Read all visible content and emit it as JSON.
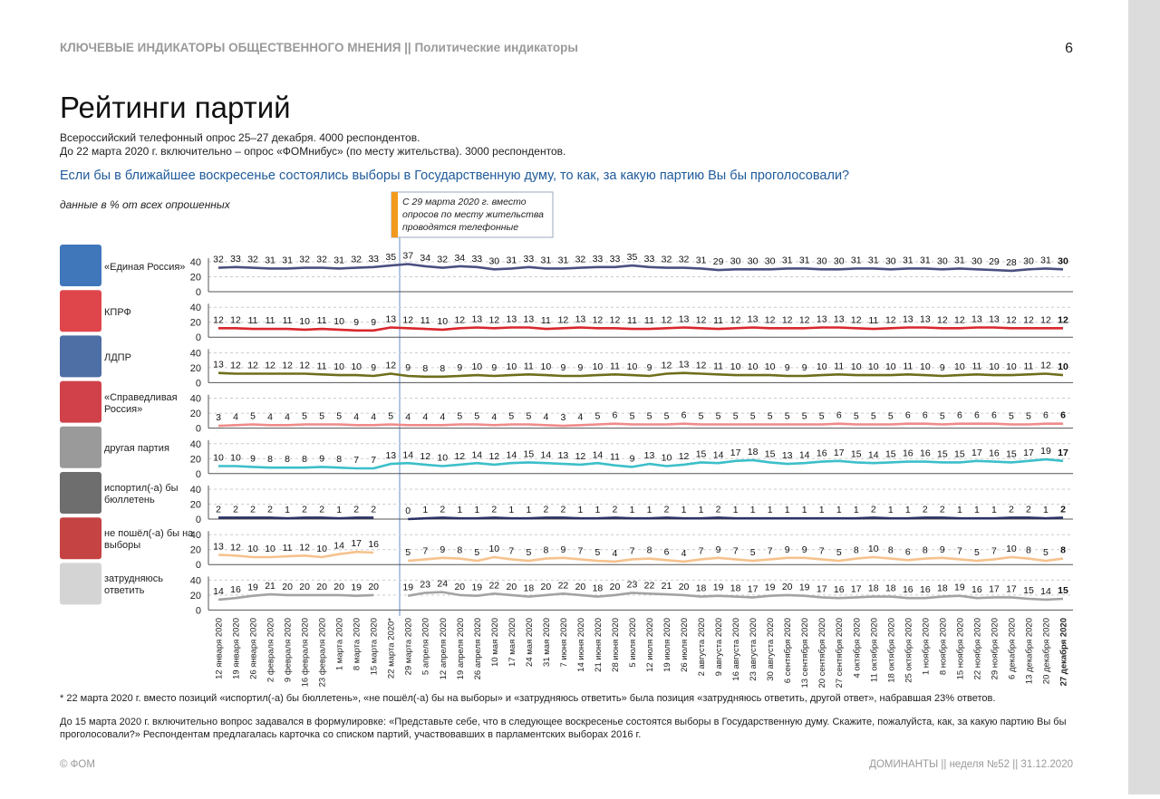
{
  "header": {
    "running_title": "КЛЮЧЕВЫЕ ИНДИКАТОРЫ ОБЩЕСТВЕННОГО МНЕНИЯ || Политические индикаторы",
    "page_number": "6"
  },
  "title": "Рейтинги партий",
  "subtitle": [
    "Всероссийский телефонный опрос 25–27 декабря. 4000 респондентов.",
    "До 22 марта 2020 г. включительно – опрос «ФОМнибус» (по месту жительства). 3000 респондентов."
  ],
  "question": "Если бы в ближайшее воскресенье состоялись выборы в Государственную думу, то как, за какую партию Вы бы проголосовали?",
  "units_note": "данные в % от всех опрошенных",
  "annotation": "С 29 марта 2020 г. вместо опросов по месту жительства проводятся телефонные опросы",
  "chart": {
    "type": "line",
    "x": [
      "12 января 2020",
      "19 января 2020",
      "26 января 2020",
      "2 февраля 2020",
      "9 февраля 2020",
      "16 февраля 2020",
      "23 февраля 2020",
      "1 марта 2020",
      "8 марта 2020",
      "15 марта 2020",
      "22 марта 2020*",
      "29 марта 2020",
      "5 апреля 2020",
      "12 апреля 2020",
      "19 апреля 2020",
      "26 апреля 2020",
      "10 мая 2020",
      "17 мая 2020",
      "24 мая 2020",
      "31 мая 2020",
      "7 июня 2020",
      "14 июня 2020",
      "21 июня 2020",
      "28 июня 2020",
      "5 июля 2020",
      "12 июля 2020",
      "19 июля 2020",
      "26 июля 2020",
      "2 августа 2020",
      "9 августа 2020",
      "16 августа 2020",
      "23 августа 2020",
      "30 августа 2020",
      "6 сентября 2020",
      "13 сентября 2020",
      "20 сентября 2020",
      "27 сентября 2020",
      "4 октября 2020",
      "11 октября 2020",
      "18 октября 2020",
      "25 октября 2020",
      "1 ноября 2020",
      "8 ноября 2020",
      "15 ноября 2020",
      "22 ноября 2020",
      "29 ноября 2020",
      "6 декабря 2020",
      "13 декабря 2020",
      "20 декабря 2020",
      "27 декабря 2020"
    ],
    "ylim": [
      0,
      40
    ],
    "yticks": [
      0,
      20,
      40
    ],
    "series": [
      {
        "name": "«Единая Россия»",
        "color": "#4b5080",
        "values": [
          32,
          33,
          32,
          31,
          31,
          32,
          32,
          31,
          32,
          33,
          35,
          37,
          34,
          32,
          34,
          33,
          30,
          31,
          33,
          31,
          31,
          32,
          33,
          33,
          35,
          33,
          32,
          32,
          31,
          29,
          30,
          30,
          30,
          31,
          31,
          30,
          30,
          31,
          31,
          30,
          31,
          31,
          30,
          31,
          30,
          29,
          28,
          30,
          31,
          30
        ]
      },
      {
        "name": "КПРФ",
        "color": "#d9262c",
        "values": [
          12,
          12,
          11,
          11,
          11,
          10,
          11,
          10,
          9,
          9,
          13,
          12,
          11,
          10,
          12,
          13,
          12,
          13,
          13,
          11,
          12,
          13,
          12,
          12,
          11,
          11,
          12,
          13,
          12,
          11,
          12,
          13,
          12,
          12,
          12,
          13,
          13,
          12,
          11,
          12,
          13,
          13,
          12,
          12,
          13,
          13,
          12,
          12,
          12,
          12
        ]
      },
      {
        "name": "ЛДПР",
        "color": "#6e6e1c",
        "values": [
          13,
          12,
          12,
          12,
          12,
          12,
          11,
          10,
          10,
          9,
          12,
          9,
          8,
          8,
          9,
          10,
          9,
          10,
          11,
          10,
          9,
          9,
          10,
          11,
          10,
          9,
          12,
          13,
          12,
          11,
          10,
          10,
          10,
          9,
          9,
          10,
          11,
          10,
          10,
          10,
          11,
          10,
          9,
          10,
          11,
          10,
          10,
          11,
          12,
          10
        ]
      },
      {
        "name": "«Справедливая Россия»",
        "color": "#f08a8a",
        "values": [
          3,
          4,
          5,
          4,
          4,
          5,
          5,
          5,
          4,
          4,
          5,
          4,
          4,
          4,
          5,
          5,
          4,
          5,
          5,
          4,
          3,
          4,
          5,
          6,
          5,
          5,
          5,
          6,
          5,
          5,
          5,
          5,
          5,
          5,
          5,
          5,
          6,
          5,
          5,
          5,
          6,
          6,
          5,
          6,
          6,
          6,
          5,
          5,
          6,
          6
        ]
      },
      {
        "name": "другая партия",
        "color": "#3cbfca",
        "values": [
          10,
          10,
          9,
          8,
          8,
          8,
          9,
          8,
          7,
          7,
          13,
          14,
          12,
          10,
          12,
          14,
          12,
          14,
          15,
          14,
          13,
          12,
          14,
          11,
          9,
          13,
          10,
          12,
          15,
          14,
          17,
          18,
          15,
          13,
          14,
          16,
          17,
          15,
          14,
          15,
          16,
          16,
          15,
          15,
          17,
          16,
          15,
          17,
          19,
          17
        ]
      },
      {
        "name": "испортил(-а) бы бюллетень",
        "color": "#2b3264",
        "values": [
          2,
          2,
          2,
          2,
          1,
          2,
          2,
          1,
          2,
          2,
          null,
          0,
          1,
          2,
          1,
          1,
          2,
          1,
          1,
          2,
          2,
          1,
          1,
          2,
          1,
          1,
          2,
          1,
          1,
          2,
          1,
          1,
          1,
          1,
          1,
          1,
          1,
          1,
          2,
          1,
          1,
          2,
          2,
          1,
          1,
          1,
          2,
          2,
          1,
          2
        ]
      },
      {
        "name": "не пошёл(-а) бы на выборы",
        "color": "#f6c28e",
        "values": [
          13,
          12,
          10,
          10,
          11,
          12,
          10,
          14,
          17,
          16,
          null,
          5,
          7,
          9,
          8,
          5,
          10,
          7,
          5,
          8,
          9,
          7,
          5,
          4,
          7,
          8,
          6,
          4,
          7,
          9,
          7,
          5,
          7,
          9,
          9,
          7,
          5,
          8,
          10,
          8,
          6,
          8,
          9,
          7,
          5,
          7,
          10,
          8,
          5,
          8
        ]
      },
      {
        "name": "затрудняюсь ответить",
        "color": "#a3a3a3",
        "values": [
          14,
          16,
          19,
          21,
          20,
          20,
          20,
          20,
          19,
          20,
          null,
          19,
          23,
          24,
          20,
          19,
          22,
          20,
          18,
          20,
          22,
          20,
          18,
          20,
          23,
          22,
          21,
          20,
          18,
          19,
          18,
          17,
          19,
          20,
          19,
          17,
          16,
          17,
          18,
          18,
          16,
          16,
          18,
          19,
          16,
          17,
          17,
          15,
          14,
          15
        ]
      }
    ]
  },
  "footnotes": [
    "*  22 марта 2020 г. вместо позиций «испортил(-а) бы бюллетень», «не пошёл(-а) бы на выборы» и «затрудняюсь ответить» была позиция «затрудняюсь ответить, другой ответ», набравшая 23% ответов.",
    "До 15 марта 2020 г. включительно вопрос задавался в формулировке: «Представьте себе, что в следующее воскресенье состоятся выборы в Государственную думу. Скажите, пожалуйста, как, за какую партию Вы бы проголосовали?» Респондентам предлагалась карточка со списком партий, участвовавших в парламентских выборах 2016 г."
  ],
  "footer": {
    "left": "© ФОМ",
    "right": "ДОМИНАНТЫ || неделя №52 || 31.12.2020"
  }
}
